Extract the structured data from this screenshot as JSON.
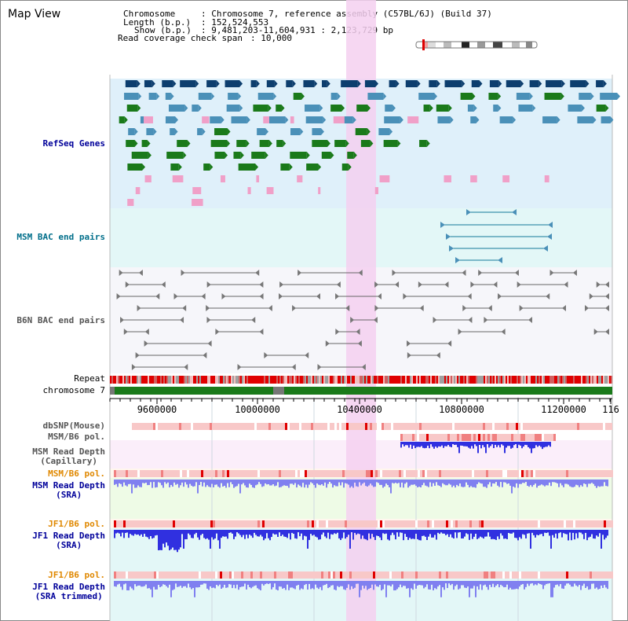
{
  "title": "Map View",
  "header": {
    "chromosome_key": "Chromosome",
    "chromosome_value": ": Chromosome 7, reference assembly (C57BL/6J) (Build 37)",
    "length_key": "Length (b.p.)",
    "length_value": ": 152,524,553",
    "show_key": "Show (b.p.)",
    "show_value": ": 9,481,203-11,604,931 : 2,123,729 bp",
    "coverage_key": "Read coverage check span",
    "coverage_value": ": 10,000"
  },
  "tracks": {
    "refseq": "RefSeq Genes",
    "msm_bac": "MSM BAC end pairs",
    "b6n_bac": "B6N BAC end pairs",
    "repeat": "Repeat",
    "chromosome": "chromosome 7",
    "dbsnp": "dbSNP(Mouse)",
    "msm_b6_pol_1": "MSM/B6 pol.",
    "msm_depth_cap_1": "MSM Read Depth",
    "msm_depth_cap_2": "(Capillary)",
    "msm_b6_pol_2": "MSM/B6 pol.",
    "msm_depth_sra_1": "MSM Read Depth",
    "msm_depth_sra_2": "(SRA)",
    "jf1_b6_pol_1": "JF1/B6 pol.",
    "jf1_depth_sra_1": "JF1 Read Depth",
    "jf1_depth_sra_2": "(SRA)",
    "jf1_b6_pol_2": "JF1/B6 pol.",
    "jf1_depth_trim_1": "JF1 Read Depth",
    "jf1_depth_trim_2": "(SRA trimmed)"
  },
  "axis": {
    "ticks": [
      "9600000",
      "10000000",
      "10400000",
      "10800000",
      "11200000",
      "116"
    ]
  },
  "colors": {
    "gene_navy": "#0d3e6e",
    "gene_teal": "#4a90b8",
    "gene_green": "#1a7a1a",
    "gene_pink": "#f0a0c8",
    "highlight": "#f5d0f0",
    "label_blue": "#00009a",
    "label_teal": "#006e8a",
    "label_gray": "#555555",
    "label_orange": "#e08800",
    "depth_blue": "#3030e0",
    "depth_light": "#8080f0"
  }
}
